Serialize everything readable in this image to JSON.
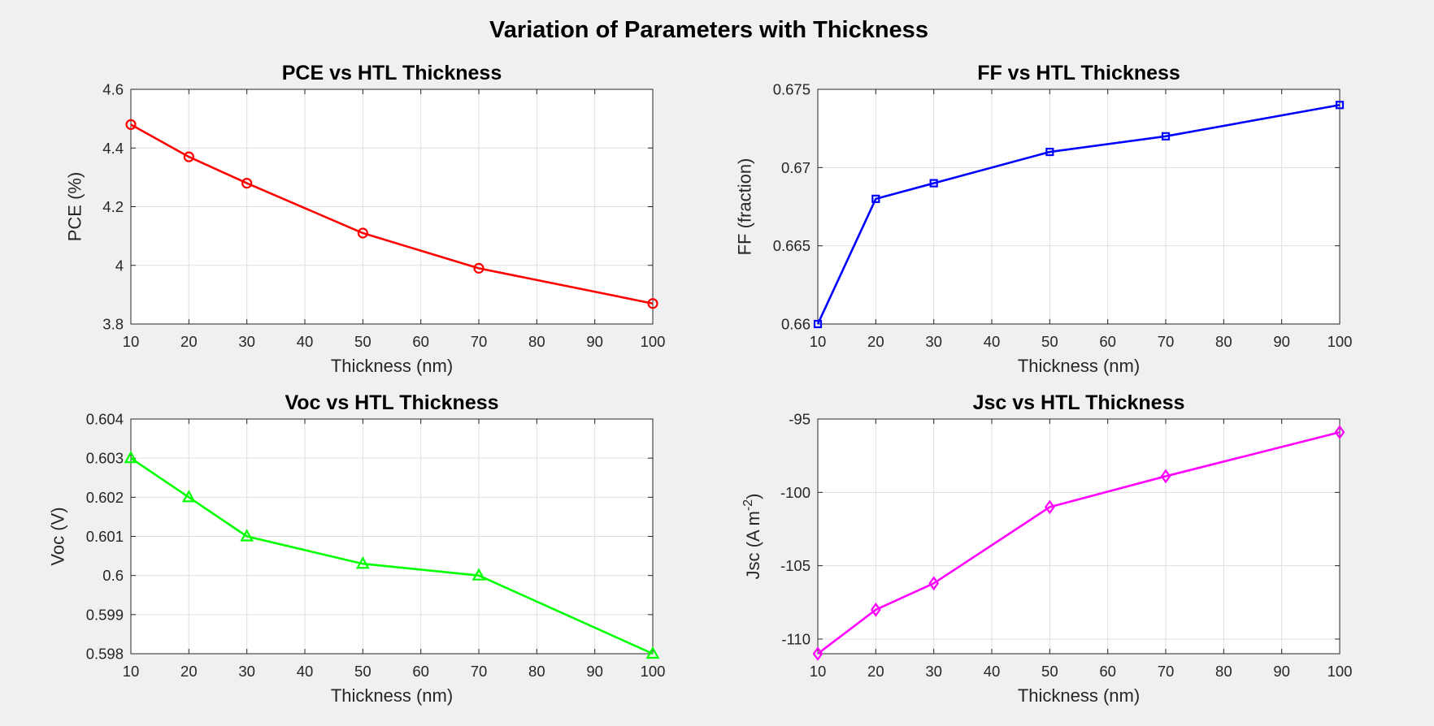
{
  "figure": {
    "suptitle": "Variation of Parameters with Thickness"
  },
  "chart_data": [
    {
      "type": "line",
      "title": "PCE vs HTL Thickness",
      "xlabel": "Thickness (nm)",
      "ylabel": "PCE (%)",
      "xlim": [
        10,
        100
      ],
      "ylim": [
        3.8,
        4.6
      ],
      "xticks": [
        10,
        20,
        30,
        40,
        50,
        60,
        70,
        80,
        90,
        100
      ],
      "yticks": [
        3.8,
        4,
        4.2,
        4.4,
        4.6
      ],
      "ytick_labels": [
        "3.8",
        "4",
        "4.2",
        "4.4",
        "4.6"
      ],
      "grid": true,
      "series": [
        {
          "color": "#ff0000",
          "marker": "circle",
          "x": [
            10,
            20,
            30,
            50,
            70,
            100
          ],
          "y": [
            4.48,
            4.37,
            4.28,
            4.11,
            3.99,
            3.87
          ]
        }
      ]
    },
    {
      "type": "line",
      "title": "FF vs HTL Thickness",
      "xlabel": "Thickness (nm)",
      "ylabel": "FF (fraction)",
      "xlim": [
        10,
        100
      ],
      "ylim": [
        0.66,
        0.675
      ],
      "xticks": [
        10,
        20,
        30,
        40,
        50,
        60,
        70,
        80,
        90,
        100
      ],
      "yticks": [
        0.66,
        0.665,
        0.67,
        0.675
      ],
      "ytick_labels": [
        "0.66",
        "0.665",
        "0.67",
        "0.675"
      ],
      "grid": true,
      "series": [
        {
          "color": "#0000ff",
          "marker": "square",
          "x": [
            10,
            20,
            30,
            50,
            70,
            100
          ],
          "y": [
            0.66,
            0.668,
            0.669,
            0.671,
            0.672,
            0.674
          ]
        }
      ]
    },
    {
      "type": "line",
      "title": "Voc vs HTL Thickness",
      "xlabel": "Thickness (nm)",
      "ylabel": "Voc (V)",
      "xlim": [
        10,
        100
      ],
      "ylim": [
        0.598,
        0.604
      ],
      "xticks": [
        10,
        20,
        30,
        40,
        50,
        60,
        70,
        80,
        90,
        100
      ],
      "yticks": [
        0.598,
        0.599,
        0.6,
        0.601,
        0.602,
        0.603,
        0.604
      ],
      "ytick_labels": [
        "0.598",
        "0.599",
        "0.6",
        "0.601",
        "0.602",
        "0.603",
        "0.604"
      ],
      "grid": true,
      "series": [
        {
          "color": "#00ff00",
          "marker": "triangle",
          "x": [
            10,
            20,
            30,
            50,
            70,
            100
          ],
          "y": [
            0.603,
            0.602,
            0.601,
            0.6003,
            0.6,
            0.598
          ]
        }
      ]
    },
    {
      "type": "line",
      "title": "Jsc vs HTL Thickness",
      "xlabel": "Thickness (nm)",
      "ylabel": "Jsc (A m",
      "ylabel_superscript": "-2",
      "ylabel_close": ")",
      "xlim": [
        10,
        100
      ],
      "ylim": [
        -111,
        -95
      ],
      "xticks": [
        10,
        20,
        30,
        40,
        50,
        60,
        70,
        80,
        90,
        100
      ],
      "yticks": [
        -110,
        -105,
        -100,
        -95
      ],
      "ytick_labels": [
        "-110",
        "-105",
        "-100",
        "-95"
      ],
      "grid": true,
      "series": [
        {
          "color": "#ff00ff",
          "marker": "diamond",
          "x": [
            10,
            20,
            30,
            50,
            70,
            100
          ],
          "y": [
            -111,
            -108,
            -106.2,
            -101,
            -98.9,
            -95.9
          ]
        }
      ]
    }
  ]
}
